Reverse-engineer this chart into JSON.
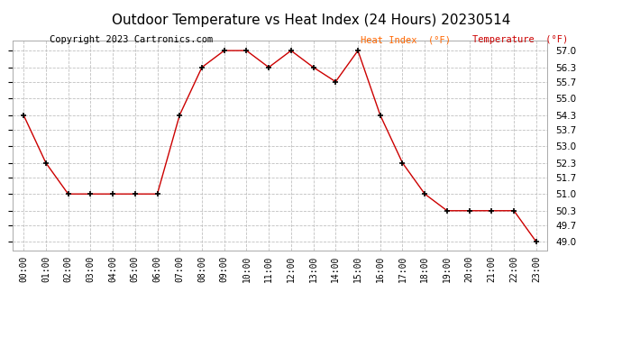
{
  "title": "Outdoor Temperature vs Heat Index (24 Hours) 20230514",
  "copyright": "Copyright 2023 Cartronics.com",
  "legend_heat_index": "Heat Index  (°F)",
  "legend_temperature": "Temperature  (°F)",
  "hours": [
    "00:00",
    "01:00",
    "02:00",
    "03:00",
    "04:00",
    "05:00",
    "06:00",
    "07:00",
    "08:00",
    "09:00",
    "10:00",
    "11:00",
    "12:00",
    "13:00",
    "14:00",
    "15:00",
    "16:00",
    "17:00",
    "18:00",
    "19:00",
    "20:00",
    "21:00",
    "22:00",
    "23:00"
  ],
  "temperature": [
    54.3,
    52.3,
    51.0,
    51.0,
    51.0,
    51.0,
    51.0,
    54.3,
    56.3,
    57.0,
    57.0,
    56.3,
    57.0,
    56.3,
    55.7,
    57.0,
    54.3,
    52.3,
    51.0,
    50.3,
    50.3,
    50.3,
    50.3,
    49.0
  ],
  "ylim_min": 48.65,
  "ylim_max": 57.42,
  "yticks": [
    49.0,
    49.7,
    50.3,
    51.0,
    51.7,
    52.3,
    53.0,
    53.7,
    54.3,
    55.0,
    55.7,
    56.3,
    57.0
  ],
  "line_color": "#cc0000",
  "marker": "+",
  "marker_color": "#000000",
  "bg_color": "#ffffff",
  "plot_bg_color": "#ffffff",
  "grid_color": "#c0c0c0",
  "title_color": "#000000",
  "title_fontsize": 11,
  "copyright_color": "#000000",
  "copyright_fontsize": 7.5,
  "legend_heat_index_color": "#ff6600",
  "legend_temperature_color": "#cc0000",
  "tick_label_color": "#000000",
  "tick_fontsize": 7.5,
  "xtick_fontsize": 7
}
